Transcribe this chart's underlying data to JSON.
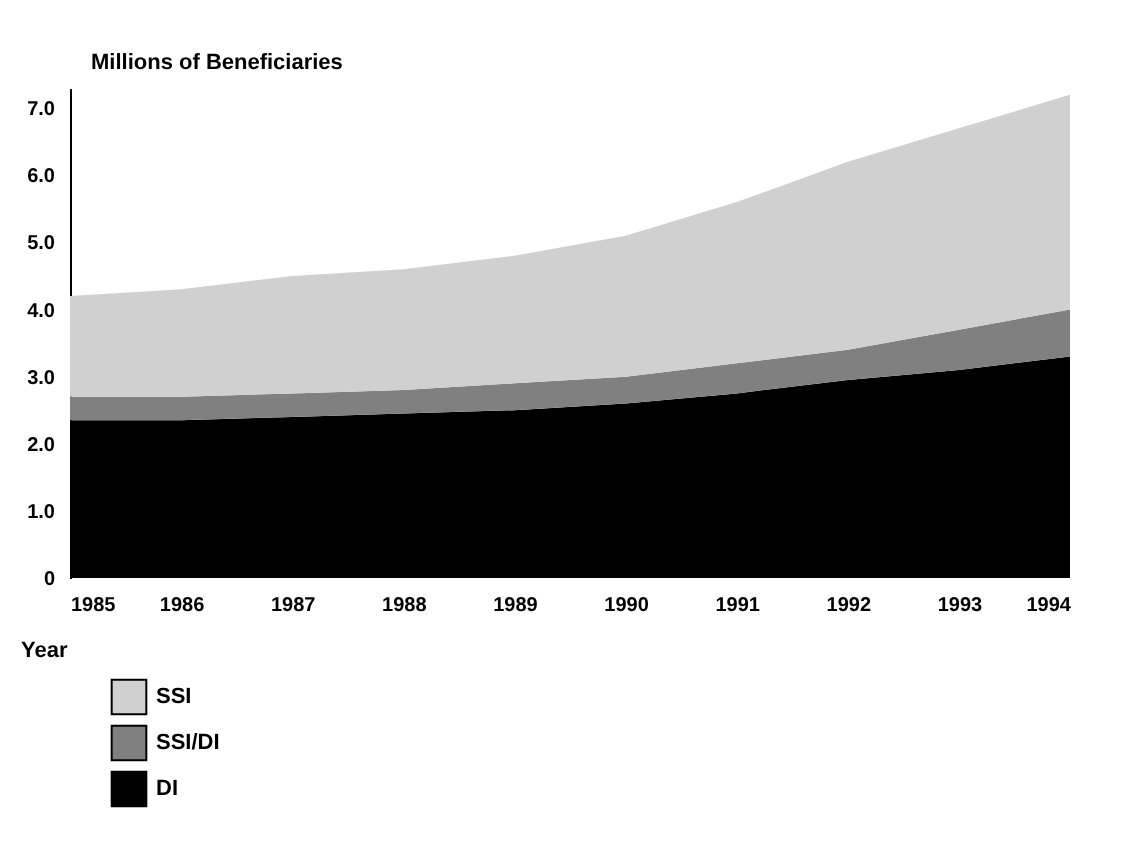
{
  "chart_data": {
    "type": "area",
    "stacked": true,
    "xlabel": "Year",
    "ylabel": "Millions of Beneficiaries",
    "x": [
      1985,
      1986,
      1987,
      1988,
      1989,
      1990,
      1991,
      1992,
      1993,
      1994
    ],
    "series": [
      {
        "name": "DI",
        "color": "#000000",
        "values": [
          2.35,
          2.35,
          2.4,
          2.45,
          2.5,
          2.6,
          2.75,
          2.95,
          3.1,
          3.3
        ]
      },
      {
        "name": "SSI/DI",
        "color": "#808080",
        "values": [
          0.35,
          0.35,
          0.35,
          0.35,
          0.4,
          0.4,
          0.45,
          0.45,
          0.6,
          0.7
        ]
      },
      {
        "name": "SSI",
        "color": "#d0d0d0",
        "values": [
          1.5,
          1.6,
          1.75,
          1.8,
          1.9,
          2.1,
          2.4,
          2.8,
          3.0,
          3.2
        ]
      }
    ],
    "xlim": [
      1985,
      1994
    ],
    "xticks": [
      1985,
      1986,
      1987,
      1988,
      1989,
      1990,
      1991,
      1992,
      1993,
      1994
    ],
    "ylim": [
      0,
      7.3
    ],
    "yticks": [
      0,
      {
        "value": 1,
        "label": "1.0"
      },
      {
        "value": 2,
        "label": "2.0"
      },
      {
        "value": 3,
        "label": "3.0"
      },
      {
        "value": 4,
        "label": "4.0"
      },
      {
        "value": 5,
        "label": "5.0"
      },
      {
        "value": 6,
        "label": "6.0"
      },
      {
        "value": 7,
        "label": "7.0"
      }
    ],
    "legend": "bottom left"
  }
}
